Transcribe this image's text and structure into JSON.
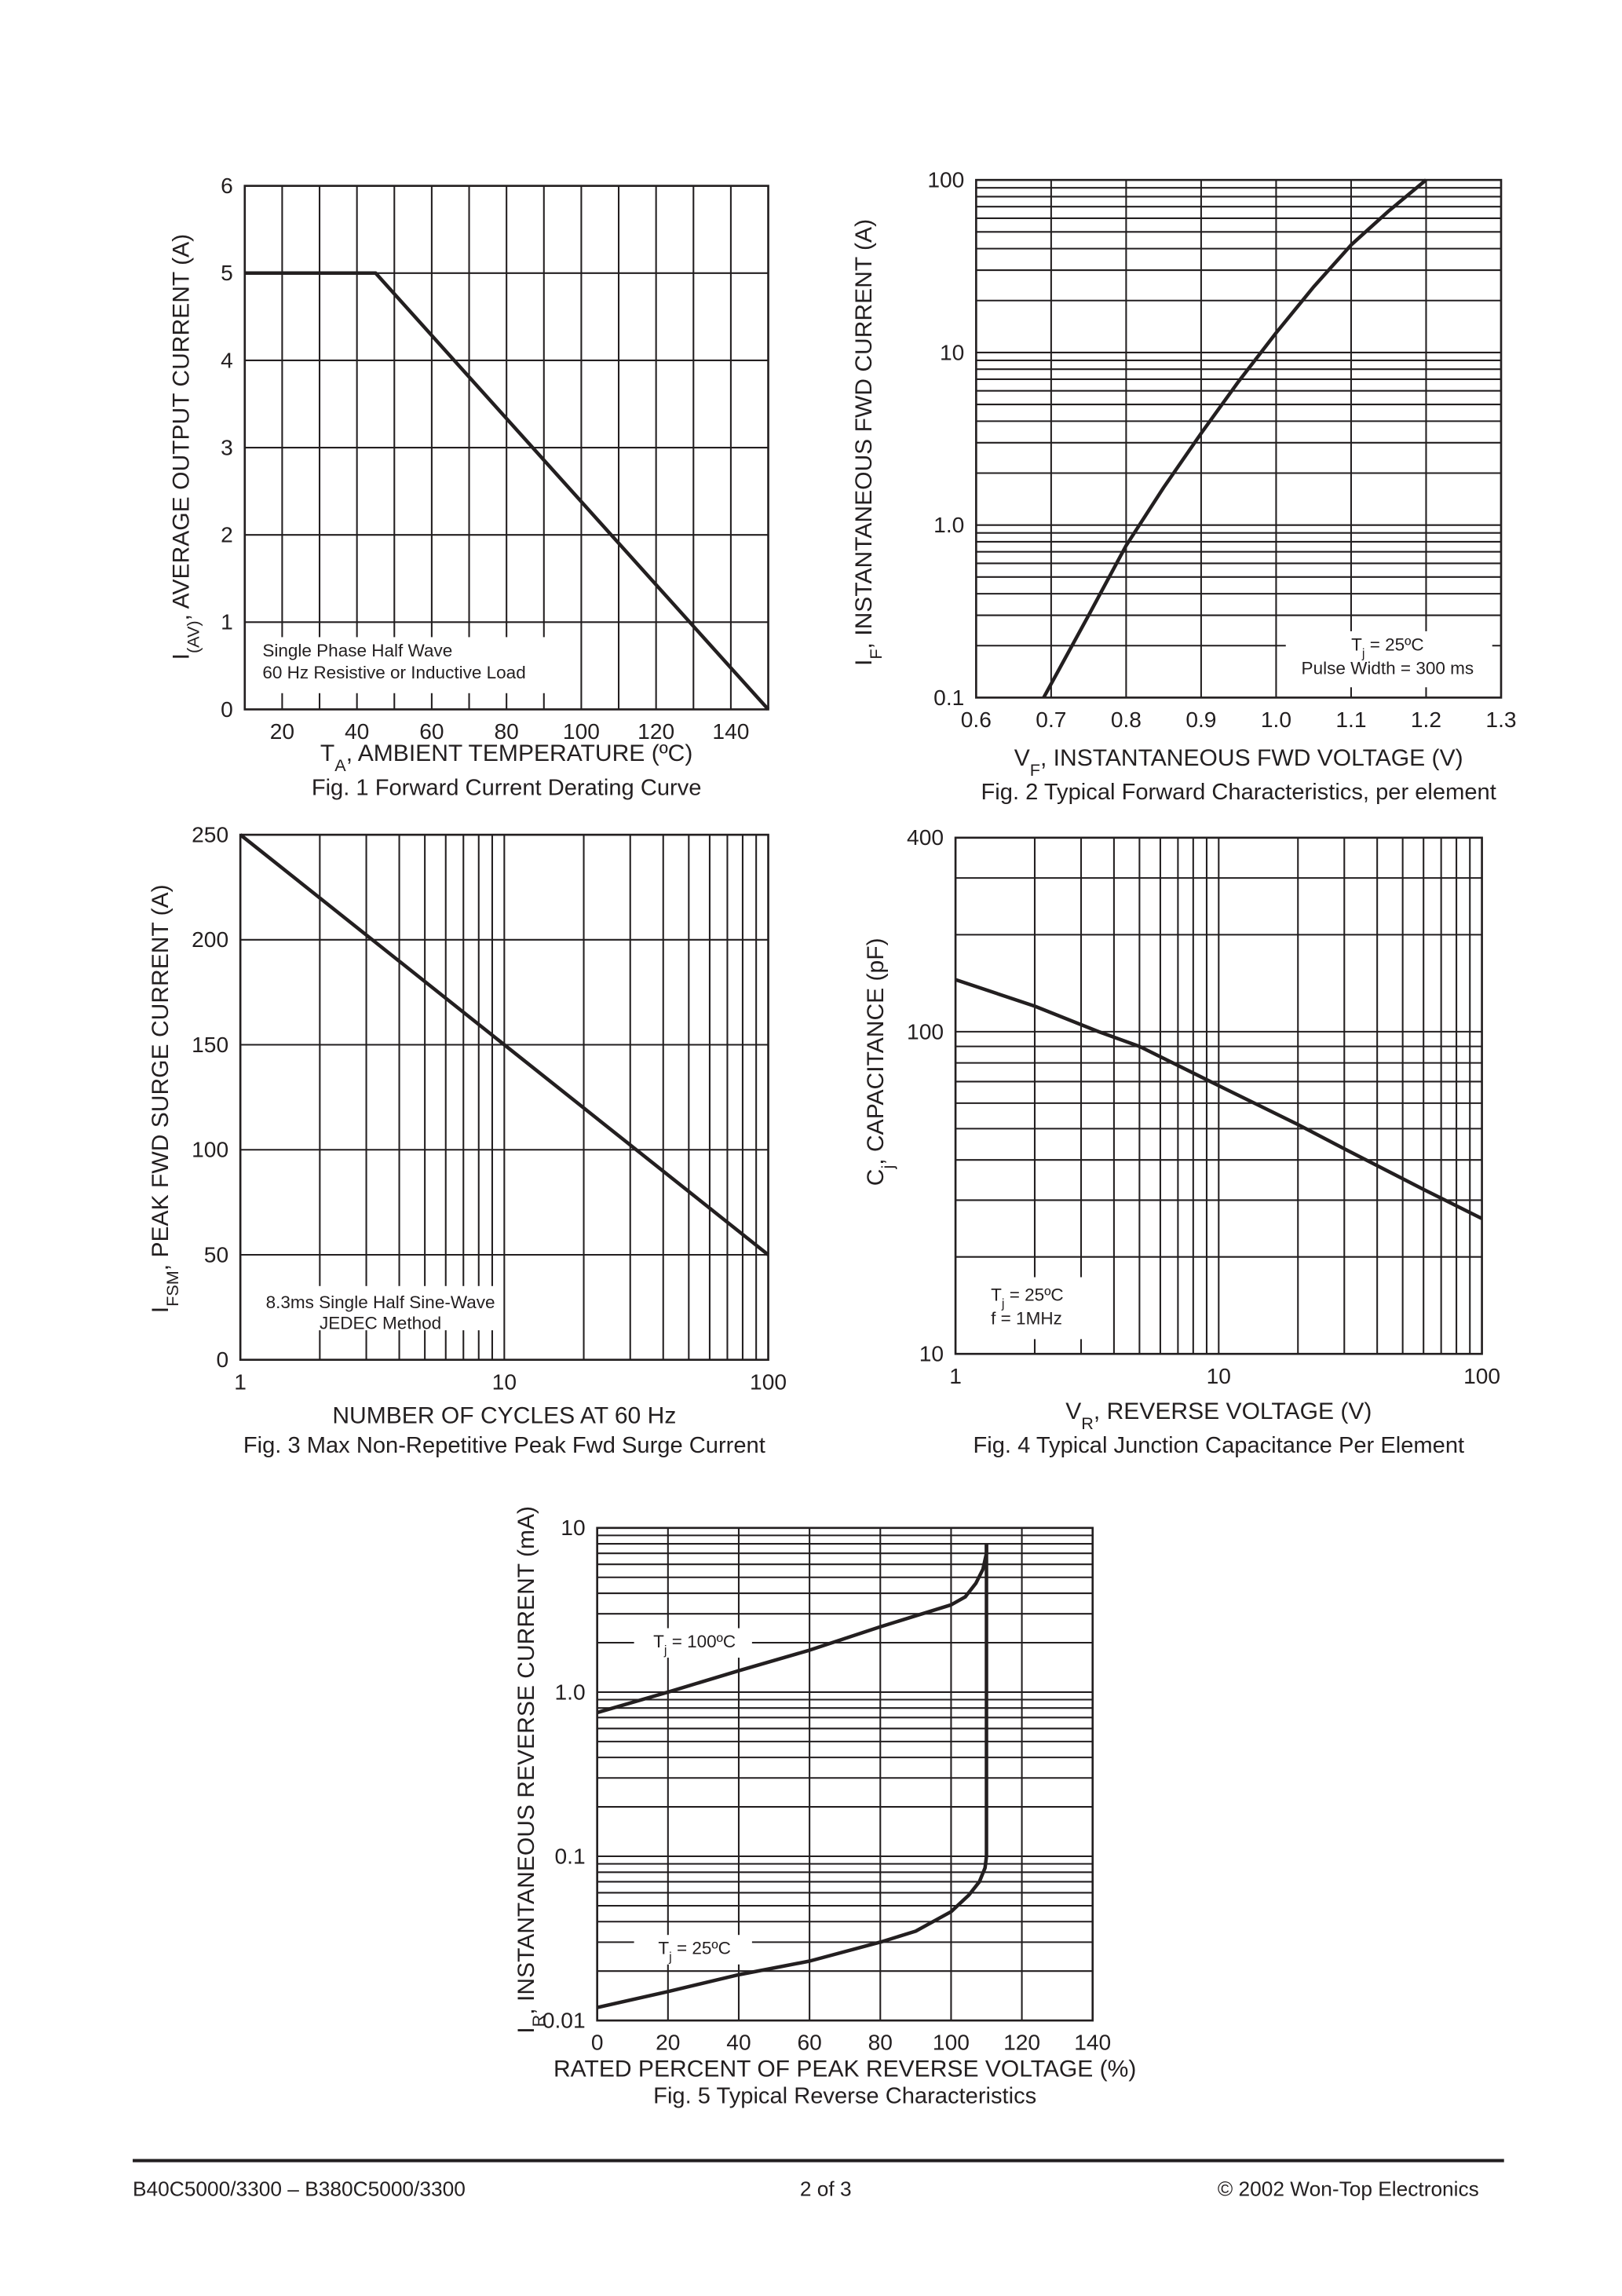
{
  "chart_data": [
    {
      "type": "line",
      "caption": "Fig. 1  Forward Current Derating Curve",
      "xlabel": {
        "main": "T",
        "sub": "A",
        "rest": ", AMBIENT TEMPERATURE (ºC)"
      },
      "ylabel": {
        "main": "I",
        "sub": "(AV)",
        "rest": ", AVERAGE OUTPUT CURRENT (A)"
      },
      "xscale": "linear",
      "yscale": "linear",
      "xlim": [
        10,
        150
      ],
      "ylim": [
        0,
        6
      ],
      "xgrid_step": 10,
      "ygrid_step": 1,
      "grid": true,
      "xticks": [
        "20",
        "40",
        "60",
        "80",
        "100",
        "120",
        "140"
      ],
      "yticks": [
        "0",
        "1",
        "2",
        "3",
        "4",
        "5",
        "6"
      ],
      "annotations": [
        [
          "Single Phase Half Wave",
          "60 Hz Resistive or Inductive Load"
        ]
      ],
      "series": [
        {
          "x": [
            10,
            45,
            150
          ],
          "y": [
            5,
            5,
            0
          ]
        }
      ]
    },
    {
      "type": "line",
      "caption": "Fig. 2  Typical Forward Characteristics, per element",
      "xlabel": {
        "main": "V",
        "sub": "F",
        "rest": ", INSTANTANEOUS FWD VOLTAGE (V)"
      },
      "ylabel": {
        "main": "I",
        "sub": "F",
        "rest": ", INSTANTANEOUS FWD CURRENT (A)"
      },
      "xscale": "linear",
      "yscale": "log",
      "xlim": [
        0.6,
        1.3
      ],
      "ylim": [
        0.1,
        100
      ],
      "xgrid_step": 0.1,
      "grid": true,
      "xticks": [
        "0.6",
        "0.7",
        "0.8",
        "0.9",
        "1.0",
        "1.1",
        "1.2",
        "1.3"
      ],
      "yticks": [
        "0.1",
        "1.0",
        "10",
        "100"
      ],
      "annotations": [
        [
          {
            "main": "T",
            "sub": "j",
            "rest": " = 25ºC"
          },
          "Pulse Width = 300 ms"
        ]
      ],
      "series": [
        {
          "x": [
            0.69,
            0.75,
            0.8,
            0.85,
            0.9,
            0.95,
            1.0,
            1.05,
            1.1,
            1.15,
            1.2
          ],
          "y": [
            0.1,
            0.3,
            0.76,
            1.65,
            3.4,
            6.8,
            13,
            24,
            42,
            66,
            100
          ]
        }
      ]
    },
    {
      "type": "line",
      "caption": "Fig. 3  Max Non-Repetitive Peak Fwd Surge Current",
      "xlabel": {
        "main": "NUMBER OF CYCLES AT 60 Hz",
        "sub": "",
        "rest": ""
      },
      "ylabel": {
        "main": "I",
        "sub": "FSM",
        "rest": ",  PEAK FWD SURGE CURRENT (A)"
      },
      "xscale": "log",
      "yscale": "linear",
      "xlim": [
        1,
        100
      ],
      "ylim": [
        0,
        250
      ],
      "ygrid_step": 50,
      "grid": true,
      "xticks": [
        "1",
        "10",
        "100"
      ],
      "yticks": [
        "0",
        "50",
        "100",
        "150",
        "200",
        "250"
      ],
      "annotations": [
        [
          "8.3ms Single Half Sine-Wave",
          "JEDEC Method"
        ]
      ],
      "series": [
        {
          "x": [
            1,
            100
          ],
          "y": [
            250,
            50
          ]
        }
      ]
    },
    {
      "type": "line",
      "caption": "Fig. 4  Typical Junction Capacitance Per Element",
      "xlabel": {
        "main": "V",
        "sub": "R",
        "rest": ", REVERSE VOLTAGE (V)"
      },
      "ylabel": {
        "main": "C",
        "sub": "j",
        "rest": ",  CAPACITANCE (pF)"
      },
      "xscale": "log",
      "yscale": "log",
      "xlim": [
        1,
        100
      ],
      "ylim": [
        10,
        400
      ],
      "grid": true,
      "xticks": [
        "1",
        "10",
        "100"
      ],
      "yticks": [
        "10",
        "100",
        "400"
      ],
      "annotations": [
        [
          {
            "main": "T",
            "sub": "j",
            "rest": " = 25ºC"
          },
          "f = 1MHz"
        ]
      ],
      "series": [
        {
          "x": [
            1,
            2,
            3.5,
            5,
            10,
            20,
            30,
            60,
            100
          ],
          "y": [
            145,
            120,
            100,
            90,
            68,
            51.5,
            43.3,
            32.4,
            26.3
          ]
        }
      ]
    },
    {
      "type": "line",
      "caption": "Fig. 5  Typical Reverse Characteristics",
      "xlabel": {
        "main": "RATED PERCENT OF PEAK REVERSE VOLTAGE (%)",
        "sub": "",
        "rest": ""
      },
      "ylabel": {
        "main": "I",
        "sub": "R",
        "rest": ", INSTANTANEOUS REVERSE CURRENT (mA)"
      },
      "xscale": "linear",
      "yscale": "log",
      "xlim": [
        0,
        140
      ],
      "ylim": [
        0.01,
        10
      ],
      "xgrid_step": 20,
      "grid": true,
      "xticks": [
        "0",
        "20",
        "40",
        "60",
        "80",
        "100",
        "120",
        "140"
      ],
      "yticks": [
        "0.01",
        "0.1",
        "1.0",
        "10"
      ],
      "annotations": [],
      "series": [
        {
          "name": {
            "main": "T",
            "sub": "j",
            "rest": " = 100ºC"
          },
          "x": [
            0,
            20,
            40,
            60,
            80,
            100,
            104,
            107,
            109,
            110,
            110
          ],
          "y": [
            0.75,
            1.0,
            1.35,
            1.8,
            2.5,
            3.4,
            3.8,
            4.6,
            5.6,
            7,
            8
          ]
        },
        {
          "name": {
            "main": "T",
            "sub": "j",
            "rest": " = 25ºC"
          },
          "x": [
            0,
            20,
            40,
            60,
            80,
            90,
            100,
            105,
            108,
            109.6,
            110,
            110
          ],
          "y": [
            0.012,
            0.015,
            0.019,
            0.023,
            0.03,
            0.035,
            0.046,
            0.058,
            0.07,
            0.085,
            0.1,
            8
          ]
        }
      ]
    }
  ],
  "footer": {
    "left": "B40C5000/3300 – B380C5000/3300",
    "center": "2  of  3",
    "right": "© 2002 Won-Top Electronics"
  }
}
